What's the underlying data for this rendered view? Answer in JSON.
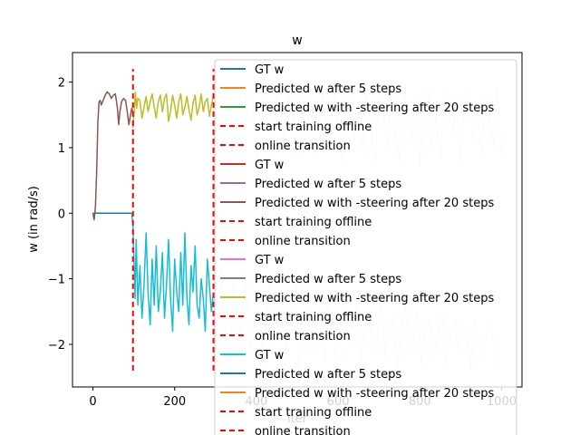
{
  "chart_data": {
    "type": "line",
    "title": "w",
    "xlabel": "iter",
    "ylabel": "w (in rad/s)",
    "xlim": [
      -50,
      1050
    ],
    "ylim": [
      -2.65,
      2.45
    ],
    "xticks": [
      0,
      200,
      400,
      600,
      800,
      1000
    ],
    "yticks": [
      -2,
      -1,
      0,
      1,
      2
    ],
    "legend_position": "upper-right",
    "legend": [
      {
        "label": "GT w",
        "color": "#1f77b4",
        "style": "solid"
      },
      {
        "label": "Predicted w after 5 steps",
        "color": "#ff7f0e",
        "style": "solid"
      },
      {
        "label": "Predicted w with -steering after 20 steps",
        "color": "#2ca02c",
        "style": "solid"
      },
      {
        "label": "start training offline",
        "color": "#ff0000",
        "style": "dashed"
      },
      {
        "label": "online transition",
        "color": "#ff0000",
        "style": "dashed"
      },
      {
        "label": "GT w",
        "color": "#d62728",
        "style": "solid"
      },
      {
        "label": "Predicted w after 5 steps",
        "color": "#9467bd",
        "style": "solid"
      },
      {
        "label": "Predicted w with -steering after 20 steps",
        "color": "#8c564b",
        "style": "solid"
      },
      {
        "label": "start training offline",
        "color": "#ff0000",
        "style": "dashed"
      },
      {
        "label": "online transition",
        "color": "#ff0000",
        "style": "dashed"
      },
      {
        "label": "GT w",
        "color": "#e377c2",
        "style": "solid"
      },
      {
        "label": "Predicted w after 5 steps",
        "color": "#7f7f7f",
        "style": "solid"
      },
      {
        "label": "Predicted w with -steering after 20 steps",
        "color": "#bcbd22",
        "style": "solid"
      },
      {
        "label": "start training offline",
        "color": "#ff0000",
        "style": "dashed"
      },
      {
        "label": "online transition",
        "color": "#ff0000",
        "style": "dashed"
      },
      {
        "label": "GT w",
        "color": "#17becf",
        "style": "solid"
      },
      {
        "label": "Predicted w after 5 steps",
        "color": "#1f77b4",
        "style": "solid"
      },
      {
        "label": "Predicted w with -steering after 20 steps",
        "color": "#ff7f0e",
        "style": "solid"
      },
      {
        "label": "start training offline",
        "color": "#ff0000",
        "style": "dashed"
      },
      {
        "label": "online transition",
        "color": "#ff0000",
        "style": "dashed"
      }
    ],
    "vlines": [
      {
        "x": 98,
        "ymin": -2.4,
        "ymax": 2.2,
        "color": "#ff0000"
      },
      {
        "x": 295,
        "ymin": -2.4,
        "ymax": 2.2,
        "color": "#ff0000"
      }
    ],
    "series": [
      {
        "color": "#8c564b",
        "x": [
          0,
          3,
          6,
          9,
          12,
          15,
          18,
          20,
          25,
          30,
          35,
          40,
          45,
          50,
          55,
          60,
          63,
          66,
          70,
          75,
          80,
          85,
          88,
          92,
          95,
          97
        ],
        "y": [
          0.0,
          -0.1,
          0.1,
          0.6,
          1.4,
          1.7,
          1.72,
          1.65,
          1.72,
          1.8,
          1.85,
          1.82,
          1.75,
          1.8,
          1.82,
          1.6,
          1.35,
          1.55,
          1.7,
          1.75,
          1.72,
          1.5,
          1.35,
          1.5,
          1.6,
          1.55
        ]
      },
      {
        "color": "#bcbd22",
        "x": [
          98,
          101,
          104,
          107,
          110,
          115,
          120,
          125,
          130,
          135,
          140,
          145,
          150,
          155,
          160,
          165,
          170,
          175,
          180,
          185,
          190,
          195,
          200,
          205,
          210,
          215,
          220,
          225,
          230,
          235,
          240,
          245,
          250,
          255,
          260,
          265,
          270,
          275,
          280,
          285,
          290,
          295
        ],
        "y": [
          1.3,
          1.55,
          1.85,
          1.6,
          1.75,
          1.72,
          1.45,
          1.62,
          1.78,
          1.55,
          1.7,
          1.82,
          1.62,
          1.45,
          1.7,
          1.8,
          1.55,
          1.75,
          1.82,
          1.4,
          1.55,
          1.8,
          1.65,
          1.45,
          1.7,
          1.82,
          1.5,
          1.62,
          1.78,
          1.58,
          1.42,
          1.68,
          1.8,
          1.5,
          1.62,
          1.82,
          1.55,
          1.7,
          1.75,
          1.48,
          1.65,
          1.8
        ]
      },
      {
        "color": "#eeeecc",
        "x": [
          295,
          310,
          325,
          340,
          350,
          360,
          370,
          380,
          390,
          400,
          410,
          420,
          430,
          440,
          450,
          460,
          470,
          480,
          490,
          500,
          510,
          520,
          530,
          540,
          550,
          560,
          570,
          580,
          590,
          600,
          610,
          620,
          630,
          640,
          650,
          660,
          670,
          680,
          690,
          700,
          710,
          720,
          730,
          740,
          750,
          760,
          770,
          780,
          790,
          800,
          810,
          820,
          830,
          840,
          850,
          860,
          870,
          880,
          890,
          900,
          910,
          920,
          930,
          940,
          950,
          960,
          970,
          980,
          990,
          1000
        ],
        "y": [
          1.8,
          1.6,
          1.9,
          1.3,
          1.5,
          1.8,
          1.2,
          1.7,
          1.9,
          0.8,
          1.6,
          1.9,
          1.4,
          0.9,
          1.8,
          1.6,
          1.0,
          1.9,
          1.5,
          0.8,
          1.7,
          1.9,
          1.2,
          1.6,
          0.9,
          1.8,
          1.5,
          1.0,
          1.9,
          1.3,
          0.8,
          1.7,
          1.9,
          1.1,
          1.6,
          0.9,
          1.8,
          1.4,
          0.7,
          1.9,
          1.6,
          1.0,
          1.8,
          1.2,
          0.8,
          1.9,
          1.5,
          1.1,
          1.8,
          0.7,
          1.6,
          1.9,
          1.0,
          1.5,
          0.8,
          1.9,
          1.6,
          1.2,
          1.8,
          0.8,
          1.7,
          1.9,
          1.1,
          1.6,
          0.9,
          1.8,
          1.5,
          1.0,
          1.9,
          0.9
        ]
      },
      {
        "color": "#1f77b4",
        "x": [
          0,
          20,
          40,
          60,
          80,
          95
        ],
        "y": [
          0.0,
          0.0,
          0.0,
          0.0,
          0.0,
          0.0
        ]
      },
      {
        "color": "#17becf",
        "x": [
          95,
          98,
          100,
          103,
          106,
          110,
          115,
          120,
          125,
          130,
          135,
          140,
          145,
          150,
          155,
          160,
          165,
          170,
          175,
          180,
          185,
          190,
          195,
          200,
          205,
          210,
          215,
          220,
          225,
          230,
          235,
          240,
          245,
          250,
          255,
          260,
          265,
          270,
          275,
          280,
          285,
          290,
          295
        ],
        "y": [
          0.0,
          -0.2,
          -0.6,
          -1.3,
          -0.4,
          -1.4,
          -0.8,
          -1.6,
          -1.1,
          -0.3,
          -1.2,
          -1.7,
          -0.7,
          -1.4,
          -0.5,
          -1.5,
          -1.2,
          -0.6,
          -1.6,
          -1.1,
          -0.4,
          -1.3,
          -1.8,
          -0.7,
          -1.2,
          -1.5,
          -0.6,
          -1.4,
          -0.3,
          -1.3,
          -1.7,
          -0.8,
          -1.2,
          -0.5,
          -1.4,
          -1.6,
          -1.0,
          -1.3,
          -1.8,
          -0.7,
          -1.1,
          -1.5,
          -1.2
        ]
      },
      {
        "color": "#d4f1f6",
        "x": [
          295,
          305,
          315,
          325,
          335,
          345,
          355,
          365,
          375,
          385,
          395,
          405,
          415,
          425,
          435,
          445,
          455,
          465,
          475,
          485,
          495,
          505,
          515,
          525,
          535,
          545,
          555,
          565,
          575,
          585,
          595,
          605,
          615,
          625,
          635,
          645,
          655,
          665,
          675,
          685,
          695,
          705,
          715,
          725,
          735,
          745,
          755,
          765,
          775,
          785,
          795,
          805,
          815,
          825,
          835,
          845,
          855,
          865,
          875,
          885,
          895,
          905,
          915,
          925,
          935,
          945,
          955,
          965,
          975,
          985,
          995
        ],
        "y": [
          -1.2,
          -2.2,
          -0.8,
          -1.9,
          -2.4,
          -1.0,
          -2.3,
          -1.6,
          -0.9,
          -2.1,
          -1.7,
          -1.2,
          -2.3,
          -1.5,
          -0.9,
          -2.0,
          -1.8,
          -1.3,
          -2.2,
          -1.6,
          -1.0,
          -2.4,
          -1.7,
          -1.2,
          -2.1,
          -1.9,
          -1.5,
          -2.3,
          -1.4,
          -1.8,
          -2.2,
          -1.6,
          -1.2,
          -2.0,
          -1.7,
          -1.4,
          -2.3,
          -1.8,
          -1.5,
          -2.1,
          -1.9,
          -1.3,
          -2.2,
          -1.7,
          -1.6,
          -2.4,
          -1.8,
          -1.4,
          -2.1,
          -1.9,
          -1.5,
          -2.3,
          -1.7,
          -1.6,
          -2.2,
          -1.8,
          -1.5,
          -2.3,
          -1.9,
          -1.6,
          -2.1,
          -1.7,
          -1.8,
          -2.4,
          -1.6,
          -1.9,
          -2.2,
          -1.8,
          -1.7,
          -2.1,
          -2.3
        ]
      }
    ]
  }
}
